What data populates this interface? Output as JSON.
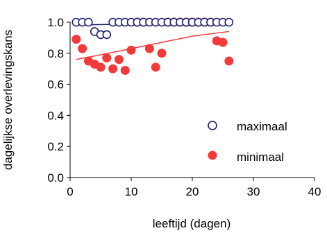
{
  "chart_data": {
    "type": "scatter",
    "xlabel": "leeftijd (dagen)",
    "ylabel": "dagelijkse overlevingskans",
    "xlim": [
      0,
      40
    ],
    "ylim": [
      0.0,
      1.0
    ],
    "x_ticks": [
      "0",
      "10",
      "20",
      "30",
      "40"
    ],
    "y_ticks": [
      "0.0",
      "0.2",
      "0.4",
      "0.6",
      "0.8",
      "1.0"
    ],
    "grid": false,
    "legend_position": "bottom-right",
    "series": [
      {
        "name": "maximaal",
        "marker": "open-circle",
        "color": "#1c1f6b",
        "points": [
          [
            1,
            1.0
          ],
          [
            2,
            1.0
          ],
          [
            3,
            1.0
          ],
          [
            4,
            0.94
          ],
          [
            5,
            0.92
          ],
          [
            6,
            0.92
          ],
          [
            7,
            1.0
          ],
          [
            8,
            1.0
          ],
          [
            9,
            1.0
          ],
          [
            10,
            1.0
          ],
          [
            11,
            1.0
          ],
          [
            12,
            1.0
          ],
          [
            13,
            1.0
          ],
          [
            14,
            1.0
          ],
          [
            15,
            1.0
          ],
          [
            16,
            1.0
          ],
          [
            17,
            1.0
          ],
          [
            18,
            1.0
          ],
          [
            19,
            1.0
          ],
          [
            20,
            1.0
          ],
          [
            21,
            1.0
          ],
          [
            22,
            1.0
          ],
          [
            23,
            1.0
          ],
          [
            24,
            1.0
          ],
          [
            25,
            1.0
          ],
          [
            26,
            1.0
          ]
        ],
        "trend": [
          [
            1,
            0.982
          ],
          [
            26,
            1.0
          ]
        ]
      },
      {
        "name": "minimaal",
        "marker": "filled-circle",
        "color": "#f23a3a",
        "points": [
          [
            1,
            0.89
          ],
          [
            2,
            0.83
          ],
          [
            3,
            0.75
          ],
          [
            4,
            0.73
          ],
          [
            5,
            0.71
          ],
          [
            6,
            0.77
          ],
          [
            7,
            0.7
          ],
          [
            8,
            0.76
          ],
          [
            9,
            0.69
          ],
          [
            10,
            0.82
          ],
          [
            11,
            1.0
          ],
          [
            12,
            1.0
          ],
          [
            13,
            0.83
          ],
          [
            14,
            0.71
          ],
          [
            15,
            0.8
          ],
          [
            16,
            1.0
          ],
          [
            17,
            1.0
          ],
          [
            18,
            1.0
          ],
          [
            19,
            1.0
          ],
          [
            20,
            1.0
          ],
          [
            21,
            1.0
          ],
          [
            22,
            1.0
          ],
          [
            23,
            1.0
          ],
          [
            24,
            0.88
          ],
          [
            25,
            0.87
          ],
          [
            26,
            0.75
          ]
        ],
        "trend": [
          [
            1,
            0.76
          ],
          [
            5,
            0.79
          ],
          [
            10,
            0.83
          ],
          [
            15,
            0.87
          ],
          [
            20,
            0.91
          ],
          [
            26,
            0.94
          ]
        ]
      }
    ]
  }
}
